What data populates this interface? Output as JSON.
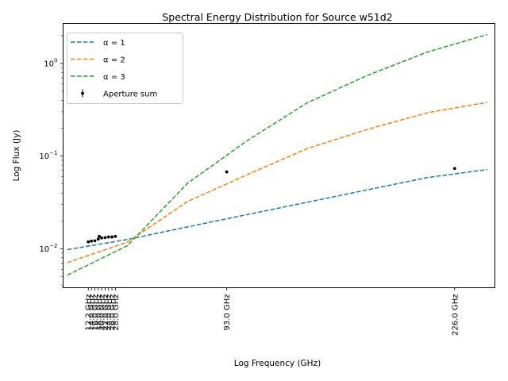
{
  "chart_data": {
    "type": "scatter",
    "title": "Spectral Energy Distribution for Source w51d2",
    "xlabel": "Log Frequency (GHz)",
    "ylabel": "Log Flux (Jy)",
    "xscale": "linear",
    "yscale": "log",
    "xlim": [
      -2.5,
      249.5
    ],
    "ylim": [
      0.0038,
      2.7
    ],
    "grid": false,
    "legend_position": "top-left",
    "x_ticks": [
      {
        "value": 12.2,
        "label": "12.2 GHz"
      },
      {
        "value": 14.0,
        "label": "14.0 GHz"
      },
      {
        "value": 16.0,
        "label": "16.0 GHz"
      },
      {
        "value": 18.0,
        "label": "18.0 GHz"
      },
      {
        "value": 20.0,
        "label": "20.0 GHz"
      },
      {
        "value": 22.0,
        "label": "22.0 GHz"
      },
      {
        "value": 24.0,
        "label": "24.0 GHz"
      },
      {
        "value": 26.0,
        "label": "26.0 GHz"
      },
      {
        "value": 28.0,
        "label": "28.0 GHz"
      },
      {
        "value": 93.0,
        "label": "93.0 GHz"
      },
      {
        "value": 226.0,
        "label": "226.0 GHz"
      }
    ],
    "y_ticks": [
      {
        "value": 0.01,
        "label": "10",
        "exp": "−2"
      },
      {
        "value": 0.1,
        "label": "10",
        "exp": "−1"
      },
      {
        "value": 1,
        "label": "10",
        "exp": "0"
      }
    ],
    "series": [
      {
        "name": "α = 1",
        "kind": "line",
        "style": "dashed",
        "color": "#1f77b4",
        "x": [
          0,
          35,
          70,
          105,
          140,
          175,
          210,
          245
        ],
        "y": [
          0.0098,
          0.0126,
          0.0172,
          0.0234,
          0.0318,
          0.0432,
          0.0587,
          0.0716
        ]
      },
      {
        "name": "α = 2",
        "kind": "line",
        "style": "dashed",
        "color": "#ff7f0e",
        "x": [
          0,
          35,
          70,
          105,
          140,
          175,
          210,
          245
        ],
        "y": [
          0.0071,
          0.0118,
          0.0323,
          0.0631,
          0.1205,
          0.1941,
          0.2931,
          0.38
        ]
      },
      {
        "name": "α = 3",
        "kind": "line",
        "style": "dashed",
        "color": "#2ca02c",
        "x": [
          0,
          35,
          70,
          105,
          140,
          175,
          210,
          245
        ],
        "y": [
          0.0052,
          0.0108,
          0.0507,
          0.1469,
          0.3761,
          0.7406,
          1.3247,
          2.05
        ]
      },
      {
        "name": "Aperture sum",
        "kind": "points",
        "color": "#000000",
        "x": [
          12.2,
          14.0,
          16.0,
          18.0,
          18.6,
          20.0,
          22.0,
          24.0,
          26.0,
          28.0,
          93.0,
          226.0
        ],
        "y": [
          0.0119,
          0.0121,
          0.0122,
          0.0127,
          0.0136,
          0.0131,
          0.0132,
          0.0134,
          0.0134,
          0.0136,
          0.0675,
          0.0735
        ]
      }
    ]
  }
}
